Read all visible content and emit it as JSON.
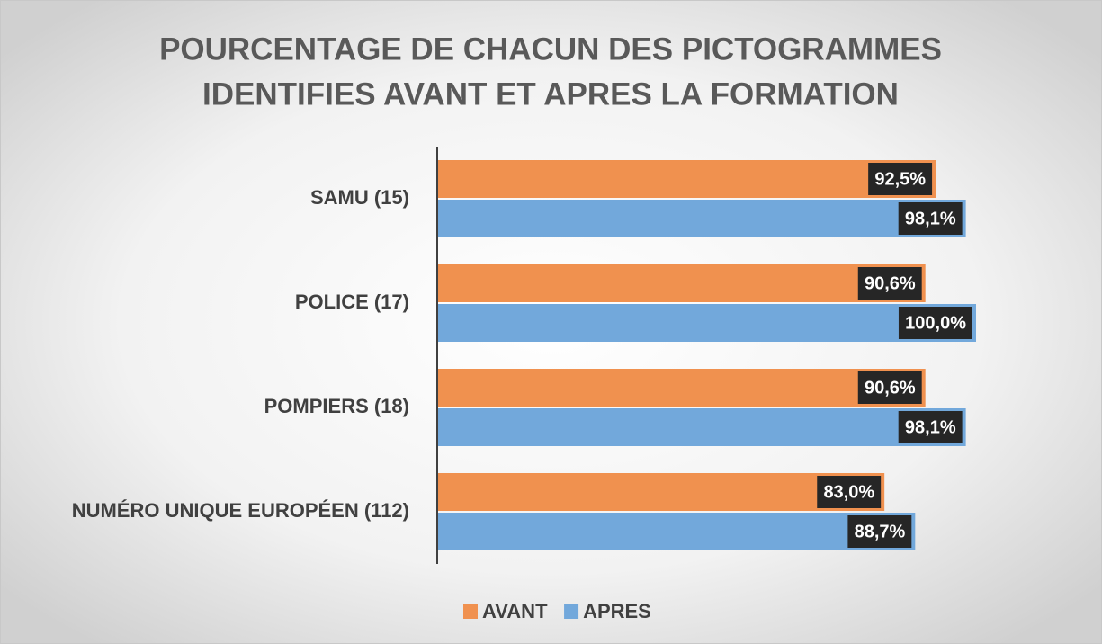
{
  "chart_data": {
    "type": "bar",
    "orientation": "horizontal",
    "title": [
      "POURCENTAGE DE CHACUN DES PICTOGRAMMES",
      "IDENTIFIES AVANT ET APRES LA FORMATION"
    ],
    "categories": [
      "SAMU (15)",
      "POLICE (17)",
      "POMPIERS (18)",
      "NUMÉRO UNIQUE EUROPÉEN (112)"
    ],
    "series": [
      {
        "name": "AVANT",
        "color": "#F0914F",
        "values": [
          92.5,
          90.6,
          90.6,
          83.0
        ],
        "value_labels": [
          "92,5%",
          "90,6%",
          "90,6%",
          "83,0%"
        ]
      },
      {
        "name": "APRES",
        "color": "#72A8DB",
        "values": [
          98.1,
          100.0,
          98.1,
          88.7
        ],
        "value_labels": [
          "98,1%",
          "100,0%",
          "98,1%",
          "88,7%"
        ]
      }
    ],
    "legend": "bottom"
  }
}
